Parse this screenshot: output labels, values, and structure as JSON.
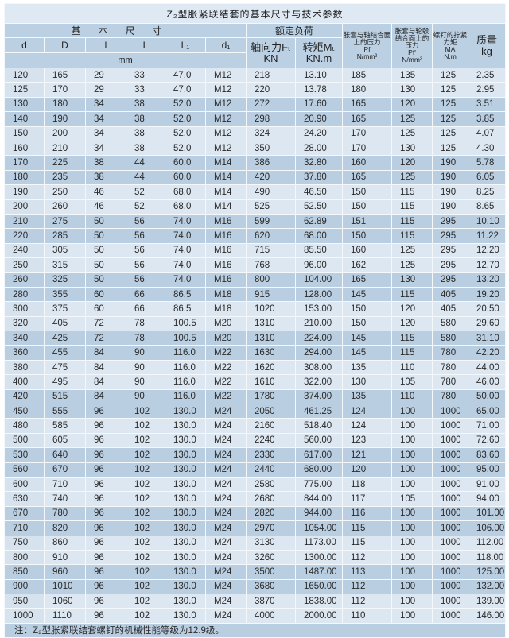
{
  "title": "Z₂型胀紧联结套的基本尺寸与技术参数",
  "header": {
    "basic_dims": "基本尺寸",
    "rated_load": "额定负荷",
    "dims": [
      "d",
      "D",
      "l",
      "L",
      "L₁",
      "d₁"
    ],
    "unit_mm": "mm",
    "axial_force": "轴向力Fₜ",
    "axial_force_unit": "KN",
    "torque": "转矩Mₜ",
    "torque_unit": "KN.m",
    "pressure_shaft": "胀套与轴结合面上的压力",
    "pressure_shaft_sym": "Pf",
    "pressure_shaft_unit": "N/mm²",
    "pressure_hub": "胀套与轮毂结合面上的压力",
    "pressure_hub_sym": "Pf'",
    "pressure_hub_unit": "N/mm²",
    "bolt_torque": "螺钉的拧紧力矩",
    "bolt_torque_sym": "MA",
    "bolt_torque_unit": "N.m",
    "mass": "质量",
    "mass_unit": "kg"
  },
  "rows": [
    [
      "120",
      "165",
      "29",
      "33",
      "47.0",
      "M12",
      "218",
      "13.10",
      "185",
      "135",
      "125",
      "2.35"
    ],
    [
      "125",
      "170",
      "29",
      "33",
      "47.0",
      "M12",
      "220",
      "13.78",
      "180",
      "130",
      "125",
      "2.95"
    ],
    [
      "130",
      "180",
      "34",
      "38",
      "52.0",
      "M12",
      "272",
      "17.60",
      "165",
      "120",
      "125",
      "3.51"
    ],
    [
      "140",
      "190",
      "34",
      "38",
      "52.0",
      "M12",
      "298",
      "20.90",
      "165",
      "125",
      "125",
      "3.85"
    ],
    [
      "150",
      "200",
      "34",
      "38",
      "52.0",
      "M12",
      "324",
      "24.20",
      "170",
      "125",
      "125",
      "4.07"
    ],
    [
      "160",
      "210",
      "34",
      "38",
      "52.0",
      "M12",
      "350",
      "28.00",
      "170",
      "130",
      "125",
      "4.30"
    ],
    [
      "170",
      "225",
      "38",
      "44",
      "60.0",
      "M14",
      "386",
      "32.80",
      "160",
      "120",
      "190",
      "5.78"
    ],
    [
      "180",
      "235",
      "38",
      "44",
      "60.0",
      "M14",
      "420",
      "37.80",
      "165",
      "125",
      "190",
      "6.05"
    ],
    [
      "190",
      "250",
      "46",
      "52",
      "68.0",
      "M14",
      "490",
      "46.50",
      "150",
      "115",
      "190",
      "8.25"
    ],
    [
      "200",
      "260",
      "46",
      "52",
      "68.0",
      "M14",
      "525",
      "52.50",
      "150",
      "115",
      "190",
      "8.65"
    ],
    [
      "210",
      "275",
      "50",
      "56",
      "74.0",
      "M16",
      "599",
      "62.89",
      "151",
      "115",
      "295",
      "10.10"
    ],
    [
      "220",
      "285",
      "50",
      "56",
      "74.0",
      "M16",
      "620",
      "68.00",
      "150",
      "115",
      "295",
      "11.22"
    ],
    [
      "240",
      "305",
      "50",
      "56",
      "74.0",
      "M16",
      "715",
      "85.50",
      "160",
      "125",
      "295",
      "12.20"
    ],
    [
      "250",
      "315",
      "50",
      "56",
      "74.0",
      "M16",
      "768",
      "96.00",
      "162",
      "125",
      "295",
      "12.70"
    ],
    [
      "260",
      "325",
      "50",
      "56",
      "74.0",
      "M16",
      "800",
      "104.00",
      "165",
      "130",
      "295",
      "13.20"
    ],
    [
      "280",
      "355",
      "60",
      "66",
      "86.5",
      "M18",
      "915",
      "128.00",
      "145",
      "115",
      "405",
      "19.20"
    ],
    [
      "300",
      "375",
      "60",
      "66",
      "86.5",
      "M18",
      "1020",
      "153.00",
      "150",
      "120",
      "405",
      "20.50"
    ],
    [
      "320",
      "405",
      "72",
      "78",
      "100.5",
      "M20",
      "1310",
      "210.00",
      "150",
      "120",
      "580",
      "29.60"
    ],
    [
      "340",
      "425",
      "72",
      "78",
      "100.5",
      "M20",
      "1310",
      "224.00",
      "145",
      "115",
      "580",
      "31.10"
    ],
    [
      "360",
      "455",
      "84",
      "90",
      "116.0",
      "M22",
      "1630",
      "294.00",
      "145",
      "115",
      "780",
      "42.20"
    ],
    [
      "380",
      "475",
      "84",
      "90",
      "116.0",
      "M22",
      "1620",
      "308.00",
      "135",
      "110",
      "780",
      "44.00"
    ],
    [
      "400",
      "495",
      "84",
      "90",
      "116.0",
      "M22",
      "1610",
      "322.00",
      "130",
      "105",
      "780",
      "46.00"
    ],
    [
      "420",
      "515",
      "84",
      "90",
      "116.0",
      "M22",
      "1780",
      "374.00",
      "135",
      "110",
      "780",
      "50.00"
    ],
    [
      "450",
      "555",
      "96",
      "102",
      "130.0",
      "M24",
      "2050",
      "461.25",
      "124",
      "100",
      "1000",
      "65.00"
    ],
    [
      "480",
      "585",
      "96",
      "102",
      "130.0",
      "M24",
      "2160",
      "518.40",
      "124",
      "100",
      "1000",
      "71.00"
    ],
    [
      "500",
      "605",
      "96",
      "102",
      "130.0",
      "M24",
      "2240",
      "560.00",
      "123",
      "100",
      "1000",
      "72.60"
    ],
    [
      "530",
      "640",
      "96",
      "102",
      "130.0",
      "M24",
      "2330",
      "617.00",
      "121",
      "100",
      "1000",
      "83.60"
    ],
    [
      "560",
      "670",
      "96",
      "102",
      "130.0",
      "M24",
      "2440",
      "680.00",
      "120",
      "100",
      "1000",
      "95.00"
    ],
    [
      "600",
      "710",
      "96",
      "102",
      "130.0",
      "M24",
      "2580",
      "775.00",
      "118",
      "100",
      "1000",
      "91.00"
    ],
    [
      "630",
      "740",
      "96",
      "102",
      "130.0",
      "M24",
      "2680",
      "844.00",
      "117",
      "105",
      "1000",
      "94.00"
    ],
    [
      "670",
      "780",
      "96",
      "102",
      "130.0",
      "M24",
      "2820",
      "944.00",
      "116",
      "100",
      "1000",
      "101.00"
    ],
    [
      "710",
      "820",
      "96",
      "102",
      "130.0",
      "M24",
      "2970",
      "1054.00",
      "115",
      "100",
      "1000",
      "106.00"
    ],
    [
      "750",
      "860",
      "96",
      "102",
      "130.0",
      "M24",
      "3130",
      "1173.00",
      "115",
      "100",
      "1000",
      "112.00"
    ],
    [
      "800",
      "910",
      "96",
      "102",
      "130.0",
      "M24",
      "3260",
      "1300.00",
      "112",
      "100",
      "1000",
      "118.00"
    ],
    [
      "850",
      "960",
      "96",
      "102",
      "130.0",
      "M24",
      "3500",
      "1487.00",
      "113",
      "100",
      "1000",
      "125.00"
    ],
    [
      "900",
      "1010",
      "96",
      "102",
      "130.0",
      "M24",
      "3680",
      "1650.00",
      "112",
      "100",
      "1000",
      "132.00"
    ],
    [
      "950",
      "1060",
      "96",
      "102",
      "130.0",
      "M24",
      "3870",
      "1838.00",
      "112",
      "100",
      "1000",
      "139.00"
    ],
    [
      "1000",
      "1110",
      "96",
      "102",
      "130.0",
      "M24",
      "4000",
      "2000.00",
      "110",
      "100",
      "1000",
      "146.00"
    ]
  ],
  "footnote": "注：Z₂型胀紧联结套螺钉的机械性能等级为12.9级。",
  "colors": {
    "title_bg": "#dfe9f3",
    "header_bg": "#bcd0e3",
    "row_light": "#dde7f1",
    "row_dark": "#bacee2"
  }
}
